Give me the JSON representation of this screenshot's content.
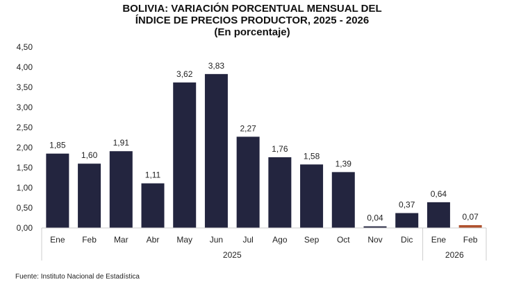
{
  "chart_data": {
    "type": "bar",
    "title": [
      "BOLIVIA: VARIACIÓN PORCENTUAL MENSUAL DEL",
      "ÍNDICE DE PRECIOS PRODUCTOR, 2025 - 2026",
      "(En porcentaje)"
    ],
    "categories": [
      "Ene",
      "Feb",
      "Mar",
      "Abr",
      "May",
      "Jun",
      "Jul",
      "Ago",
      "Sep",
      "Oct",
      "Nov",
      "Dic",
      "Ene",
      "Feb"
    ],
    "years": [
      {
        "label": "2025",
        "count": 12
      },
      {
        "label": "2026",
        "count": 2
      }
    ],
    "values": [
      1.85,
      1.6,
      1.91,
      1.11,
      3.62,
      3.83,
      2.27,
      1.76,
      1.58,
      1.39,
      0.04,
      0.37,
      0.64,
      0.07
    ],
    "data_labels": [
      "1,85",
      "1,60",
      "1,91",
      "1,11",
      "3,62",
      "3,83",
      "2,27",
      "1,76",
      "1,58",
      "1,39",
      "0,04",
      "0,37",
      "0,64",
      "0,07"
    ],
    "yticks": [
      "0,00",
      "0,50",
      "1,00",
      "1,50",
      "2,00",
      "2,50",
      "3,00",
      "3,50",
      "4,00",
      "4,50"
    ],
    "ylim": [
      0,
      4.5
    ],
    "grid": false,
    "colors": {
      "bar": "#23253f",
      "highlight": "#b0522e"
    },
    "highlight_index": 13,
    "source": "Fuente: Instituto Nacional de Estadística"
  }
}
